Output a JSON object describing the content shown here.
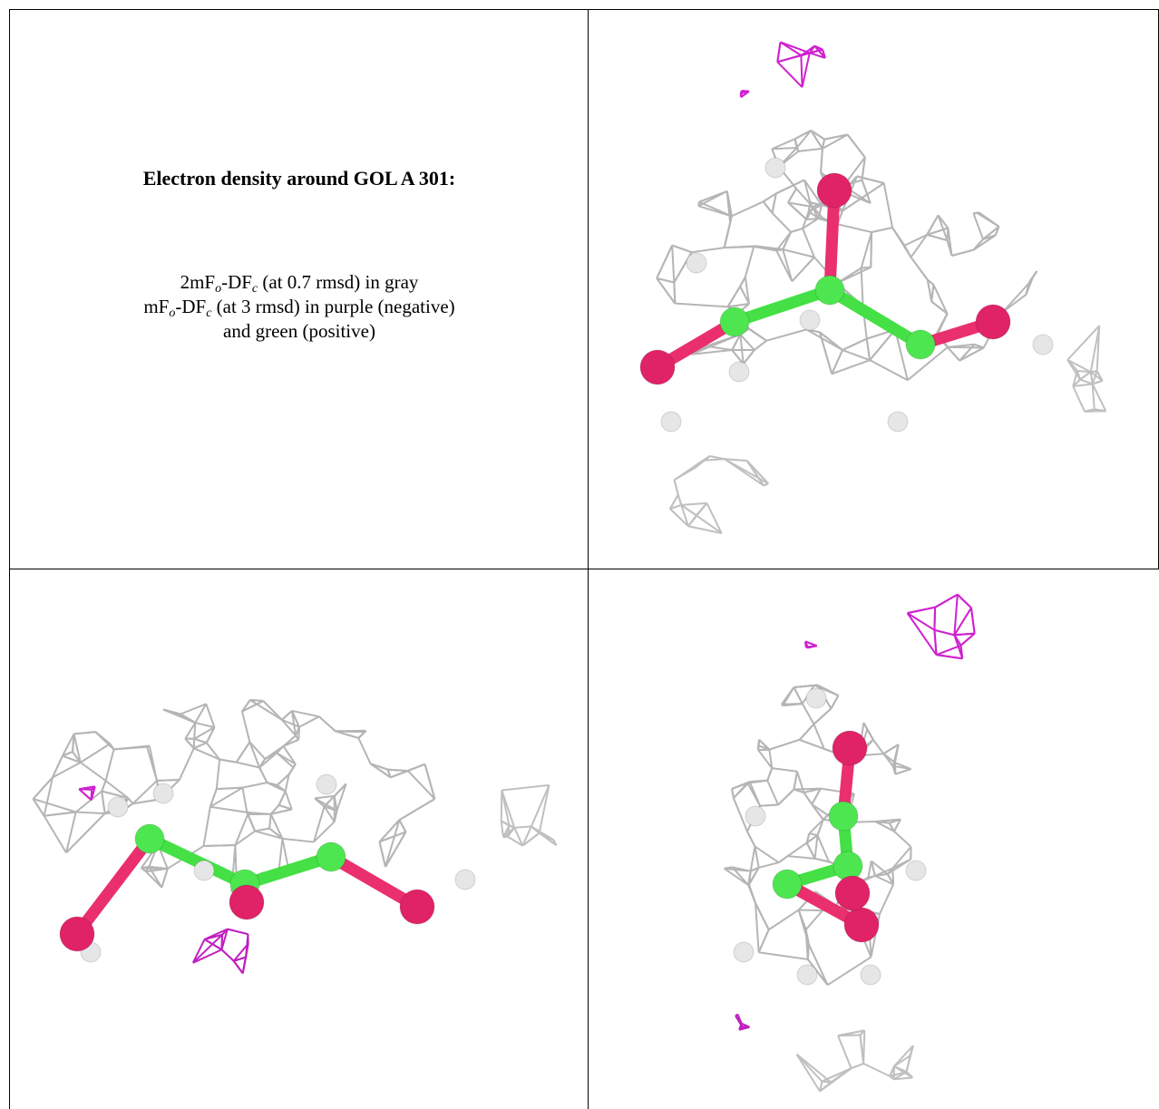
{
  "figure": {
    "title": "Electron density around GOL A 301:",
    "description_lines": [
      [
        "2mF",
        "o",
        "-DF",
        "c",
        " (at 0.7 rmsd) in gray"
      ],
      [
        "mF",
        "o",
        "-DF",
        "c",
        " (at 3 rmsd) in purple (negative)"
      ],
      [
        "and green (positive)"
      ]
    ]
  }
}
